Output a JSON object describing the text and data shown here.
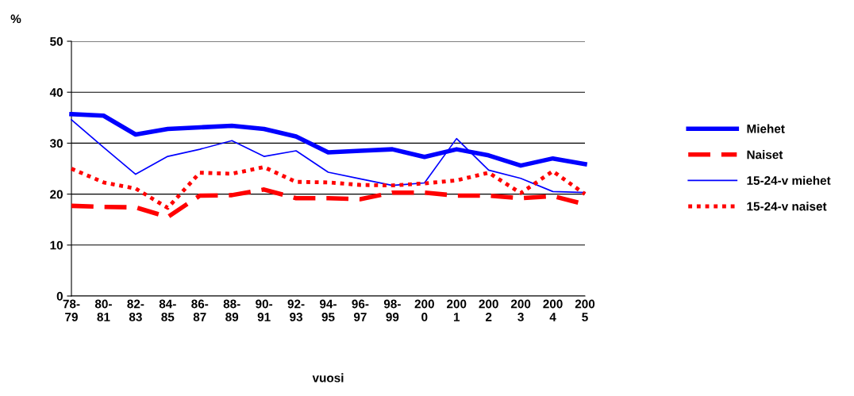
{
  "chart_data": {
    "type": "line",
    "xlabel": "vuosi",
    "ylabel": "%",
    "categories": [
      "78-\n79",
      "80-\n81",
      "82-\n83",
      "84-\n85",
      "86-\n87",
      "88-\n89",
      "90-\n91",
      "92-\n93",
      "94-\n95",
      "96-\n97",
      "98-\n99",
      "200\n0",
      "200\n1",
      "200\n2",
      "200\n3",
      "200\n4",
      "200\n5"
    ],
    "series": [
      {
        "name": "Miehet",
        "color": "#0000ff",
        "line_style": "solid",
        "values": [
          35.7,
          35.4,
          31.7,
          32.8,
          33.1,
          33.4,
          32.8,
          31.3,
          28.2,
          28.5,
          28.8,
          27.3,
          28.8,
          27.6,
          25.6,
          27.0,
          25.9
        ]
      },
      {
        "name": "Naiset",
        "color": "#ff0000",
        "line_style": "dashed",
        "values": [
          17.7,
          17.5,
          17.4,
          15.5,
          19.7,
          19.8,
          20.9,
          19.2,
          19.2,
          19.0,
          20.3,
          20.3,
          19.7,
          19.7,
          19.2,
          19.6,
          18.0
        ]
      },
      {
        "name": "15-24-v miehet",
        "color": "#0000ff",
        "line_style": "solid",
        "values": [
          34.6,
          29.2,
          23.9,
          27.4,
          28.8,
          30.5,
          27.4,
          28.5,
          24.3,
          23.0,
          21.7,
          22.2,
          30.9,
          24.7,
          23.1,
          20.5,
          20.3
        ]
      },
      {
        "name": "15-24-v naiset",
        "color": "#ff0000",
        "line_style": "dotted",
        "values": [
          25.0,
          22.3,
          21.1,
          17.3,
          24.2,
          24.0,
          25.3,
          22.4,
          22.3,
          21.8,
          21.7,
          22.1,
          22.7,
          24.2,
          20.2,
          24.5,
          20.0
        ]
      }
    ],
    "ylim": [
      0,
      50
    ],
    "yticks": [
      0,
      10,
      20,
      30,
      40,
      50
    ],
    "grid": "y",
    "legend": "right",
    "marker": "none"
  }
}
